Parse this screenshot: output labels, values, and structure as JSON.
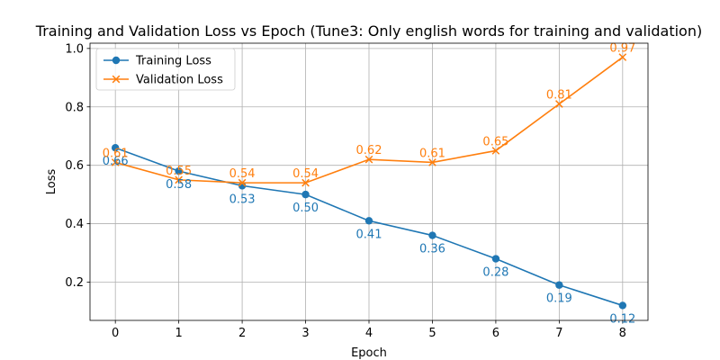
{
  "chart_data": {
    "type": "line",
    "title": "Training and Validation Loss vs Epoch (Tune3: Only english words for training and validation)",
    "xlabel": "Epoch",
    "ylabel": "Loss",
    "x": [
      0,
      1,
      2,
      3,
      4,
      5,
      6,
      7,
      8
    ],
    "xlim": [
      -0.4,
      8.4
    ],
    "ylim": [
      0.069,
      1.018
    ],
    "xticks": [
      "0",
      "1",
      "2",
      "3",
      "4",
      "5",
      "6",
      "7",
      "8"
    ],
    "yticks": [
      "0.2",
      "0.4",
      "0.6",
      "0.8",
      "1.0"
    ],
    "grid": true,
    "legend_position": "upper-left",
    "series": [
      {
        "name": "Training Loss",
        "color": "#1f77b4",
        "marker": "circle",
        "values": [
          0.66,
          0.58,
          0.53,
          0.5,
          0.41,
          0.36,
          0.28,
          0.19,
          0.12
        ],
        "labels": [
          "0.66",
          "0.58",
          "0.53",
          "0.50",
          "0.41",
          "0.36",
          "0.28",
          "0.19",
          "0.12"
        ]
      },
      {
        "name": "Validation Loss",
        "color": "#ff7f0e",
        "marker": "x",
        "values": [
          0.61,
          0.55,
          0.54,
          0.54,
          0.62,
          0.61,
          0.65,
          0.81,
          0.97
        ],
        "labels": [
          "0.61",
          "0.55",
          "0.54",
          "0.54",
          "0.62",
          "0.61",
          "0.65",
          "0.81",
          "0.97"
        ]
      }
    ]
  }
}
